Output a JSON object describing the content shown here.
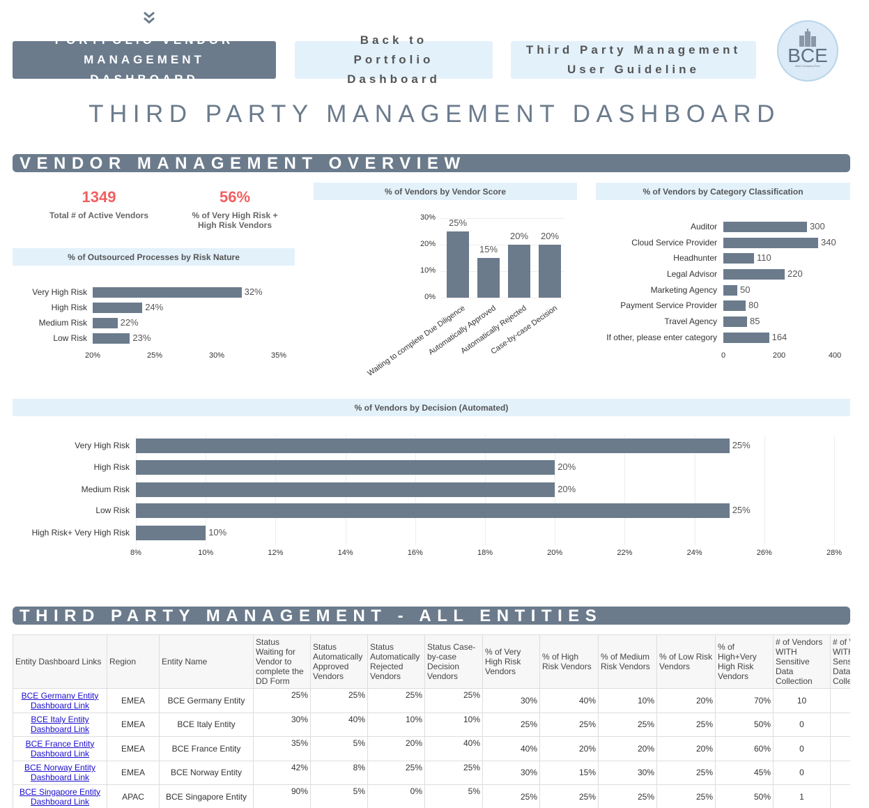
{
  "nav": {
    "chevron_icon": "double-chevron-down-icon",
    "btn_portfolio": "PORTFOLIO VENDOR MANAGEMENT DASHBOARD",
    "btn_back": "Back to Portfolio Dashboard",
    "btn_guideline": "Third Party Management User Guideline",
    "logo_text": "BCE",
    "logo_tagline": "Best Company Ever"
  },
  "page_title": "THIRD PARTY MANAGEMENT DASHBOARD",
  "overview": {
    "title": "VENDOR MANAGEMENT OVERVIEW",
    "kpi1": {
      "value": "1349",
      "label": "Total # of Active Vendors"
    },
    "kpi2": {
      "value": "56%",
      "label": "% of Very High Risk + High Risk Vendors"
    },
    "kpi_color": "#f06060"
  },
  "chart_data": [
    {
      "type": "bar",
      "orientation": "horizontal",
      "title": "% of Outsourced Processes by Risk Nature",
      "categories": [
        "Very High Risk",
        "High Risk",
        "Medium Risk",
        "Low Risk"
      ],
      "values": [
        32,
        24,
        22,
        23
      ],
      "labels": [
        "32%",
        "24%",
        "22%",
        "23%"
      ],
      "xlim": [
        20,
        35
      ],
      "ticks": [
        "20%",
        "25%",
        "30%",
        "35%"
      ],
      "tick_values": [
        20,
        25,
        30,
        35
      ]
    },
    {
      "type": "bar",
      "orientation": "vertical",
      "title": "% of Vendors by Vendor Score",
      "categories": [
        "Waiting to complete Due Diligence",
        "Automatically Approved",
        "Automatically Rejected",
        "Case-by-case Decision"
      ],
      "values": [
        25,
        15,
        20,
        20
      ],
      "labels": [
        "25%",
        "15%",
        "20%",
        "20%"
      ],
      "ylim": [
        0,
        30
      ],
      "ticks": [
        "0%",
        "10%",
        "20%",
        "30%"
      ],
      "tick_values": [
        0,
        10,
        20,
        30
      ]
    },
    {
      "type": "bar",
      "orientation": "horizontal",
      "title": "% of Vendors by Category Classification",
      "categories": [
        "Auditor",
        "Cloud Service Provider",
        "Headhunter",
        "Legal Advisor",
        "Marketing Agency",
        "Payment Service Provider",
        "Travel Agency",
        "If other, please enter category"
      ],
      "values": [
        300,
        340,
        110,
        220,
        50,
        80,
        85,
        164
      ],
      "labels": [
        "300",
        "340",
        "110",
        "220",
        "50",
        "80",
        "85",
        "164"
      ],
      "xlim": [
        0,
        400
      ],
      "ticks": [
        "0",
        "200",
        "400"
      ],
      "tick_values": [
        0,
        200,
        400
      ]
    },
    {
      "type": "bar",
      "orientation": "horizontal",
      "title": "% of Vendors by Decision (Automated)",
      "categories": [
        "Very High Risk",
        "High Risk",
        "Medium Risk",
        "Low Risk",
        "High Risk+ Very High Risk"
      ],
      "values": [
        25,
        20,
        20,
        25,
        10
      ],
      "labels": [
        "25%",
        "20%",
        "20%",
        "25%",
        "10%"
      ],
      "xlim": [
        8,
        28
      ],
      "ticks": [
        "8%",
        "10%",
        "12%",
        "14%",
        "16%",
        "18%",
        "20%",
        "22%",
        "24%",
        "26%",
        "28%"
      ],
      "tick_values": [
        8,
        10,
        12,
        14,
        16,
        18,
        20,
        22,
        24,
        26,
        28
      ]
    }
  ],
  "entities": {
    "title": "THIRD PARTY MANAGEMENT - ALL ENTITIES",
    "headers": [
      "Entity Dashboard Links",
      "Region",
      "Entity Name",
      "Status Waiting for Vendor to complete the DD Form",
      "Status Automatically Approved Vendors",
      "Status Automatically Rejected Vendors",
      "Status Case-by-case Decision Vendors",
      "% of Very High Risk Vendors",
      "% of High Risk Vendors",
      "% of Medium Risk Vendors",
      "% of Low Risk Vendors",
      "% of High+Very High Risk Vendors",
      "# of Vendors WITH Sensitive Data Collection",
      "# of Vendors WITH Sensitive Data Collection"
    ],
    "rows": [
      [
        "BCE Germany Entity Dashboard Link",
        "EMEA",
        "BCE Germany Entity",
        "25%",
        "25%",
        "25%",
        "25%",
        "30%",
        "40%",
        "10%",
        "20%",
        "70%",
        "10",
        ""
      ],
      [
        "BCE Italy Entity Dashboard Link",
        "EMEA",
        "BCE Italy Entity",
        "30%",
        "40%",
        "10%",
        "10%",
        "25%",
        "25%",
        "25%",
        "25%",
        "50%",
        "0",
        ""
      ],
      [
        "BCE France Entity Dashboard Link",
        "EMEA",
        "BCE France Entity",
        "35%",
        "5%",
        "20%",
        "40%",
        "40%",
        "20%",
        "20%",
        "20%",
        "60%",
        "0",
        ""
      ],
      [
        "BCE Norway Entity Dashboard Link",
        "EMEA",
        "BCE Norway Entity",
        "42%",
        "8%",
        "25%",
        "25%",
        "30%",
        "15%",
        "30%",
        "25%",
        "45%",
        "0",
        ""
      ],
      [
        "BCE Singapore Entity Dashboard Link",
        "APAC",
        "BCE Singapore Entity",
        "90%",
        "5%",
        "0%",
        "5%",
        "25%",
        "25%",
        "25%",
        "25%",
        "50%",
        "1",
        ""
      ]
    ]
  }
}
